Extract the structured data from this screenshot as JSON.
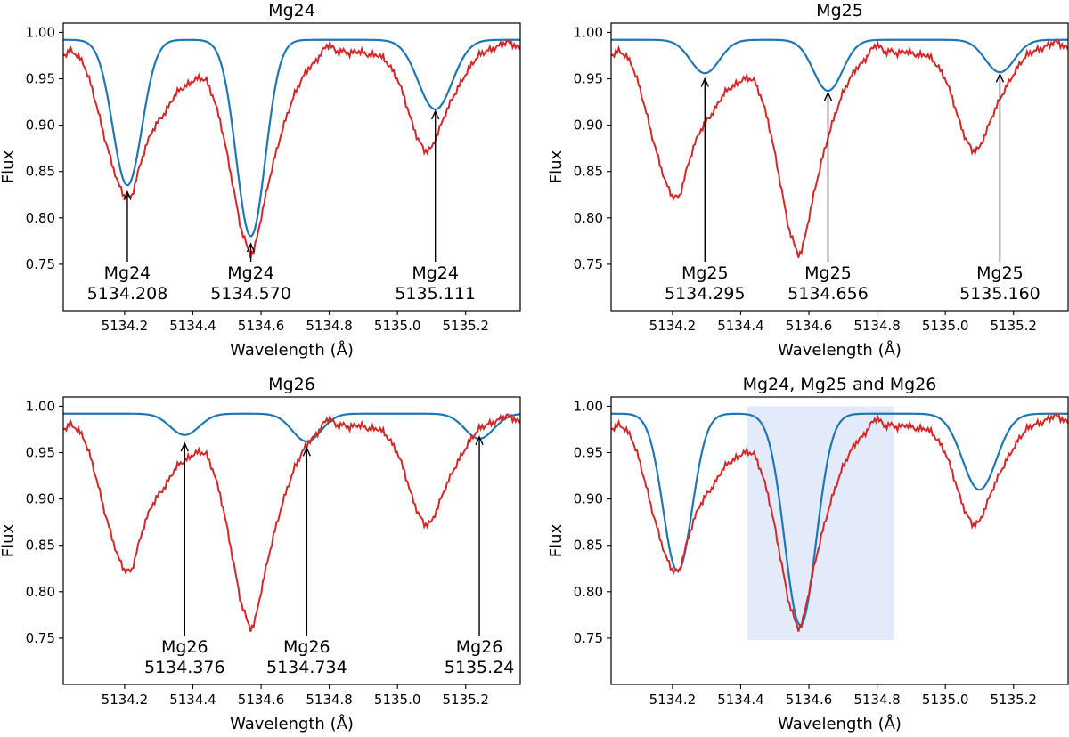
{
  "chart_data": [
    {
      "type": "line",
      "title": "Mg24",
      "xlabel": "Wavelength (Å)",
      "ylabel": "Flux",
      "xlim": [
        5134.02,
        5135.36
      ],
      "ylim": [
        0.7,
        1.01
      ],
      "xticks": [
        "5134.2",
        "5134.4",
        "5134.6",
        "5134.8",
        "5135.0",
        "5135.2"
      ],
      "yticks": [
        "0.75",
        "0.80",
        "0.85",
        "0.90",
        "0.95",
        "1.00"
      ],
      "model_dips": [
        {
          "center": 5134.208,
          "depth": 0.157,
          "width": 0.06
        },
        {
          "center": 5134.57,
          "depth": 0.212,
          "width": 0.06
        },
        {
          "center": 5135.111,
          "depth": 0.075,
          "width": 0.07
        }
      ],
      "model_continuum": 0.992,
      "annotations": [
        {
          "name": "Mg24",
          "wavelength": "5134.208",
          "x": 5134.208,
          "y_tip": 0.828
        },
        {
          "name": "Mg24",
          "wavelength": "5134.570",
          "x": 5134.57,
          "y_tip": 0.772
        },
        {
          "name": "Mg24",
          "wavelength": "5135.111",
          "x": 5135.111,
          "y_tip": 0.915
        }
      ]
    },
    {
      "type": "line",
      "title": "Mg25",
      "xlabel": "Wavelength (Å)",
      "ylabel": "Flux",
      "xlim": [
        5134.02,
        5135.36
      ],
      "ylim": [
        0.7,
        1.01
      ],
      "xticks": [
        "5134.2",
        "5134.4",
        "5134.6",
        "5134.8",
        "5135.0",
        "5135.2"
      ],
      "yticks": [
        "0.75",
        "0.80",
        "0.85",
        "0.90",
        "0.95",
        "1.00"
      ],
      "model_dips": [
        {
          "center": 5134.295,
          "depth": 0.036,
          "width": 0.06
        },
        {
          "center": 5134.656,
          "depth": 0.055,
          "width": 0.06
        },
        {
          "center": 5135.16,
          "depth": 0.035,
          "width": 0.06
        }
      ],
      "model_continuum": 0.992,
      "annotations": [
        {
          "name": "Mg25",
          "wavelength": "5134.295",
          "x": 5134.295,
          "y_tip": 0.95
        },
        {
          "name": "Mg25",
          "wavelength": "5134.656",
          "x": 5134.656,
          "y_tip": 0.935
        },
        {
          "name": "Mg25",
          "wavelength": "5135.160",
          "x": 5135.16,
          "y_tip": 0.955
        }
      ]
    },
    {
      "type": "line",
      "title": "Mg26",
      "xlabel": "Wavelength (Å)",
      "ylabel": "Flux",
      "xlim": [
        5134.02,
        5135.36
      ],
      "ylim": [
        0.7,
        1.01
      ],
      "xticks": [
        "5134.2",
        "5134.4",
        "5134.6",
        "5134.8",
        "5135.0",
        "5135.2"
      ],
      "yticks": [
        "0.75",
        "0.80",
        "0.85",
        "0.90",
        "0.95",
        "1.00"
      ],
      "model_dips": [
        {
          "center": 5134.376,
          "depth": 0.023,
          "width": 0.06
        },
        {
          "center": 5134.734,
          "depth": 0.03,
          "width": 0.06
        },
        {
          "center": 5135.24,
          "depth": 0.027,
          "width": 0.06
        }
      ],
      "model_continuum": 0.992,
      "annotations": [
        {
          "name": "Mg26",
          "wavelength": "5134.376",
          "x": 5134.376,
          "y_tip": 0.96
        },
        {
          "name": "Mg26",
          "wavelength": "5134.734",
          "x": 5134.734,
          "y_tip": 0.955
        },
        {
          "name": "Mg26",
          "wavelength": "5135.24",
          "x": 5135.24,
          "y_tip": 0.967
        }
      ]
    },
    {
      "type": "line",
      "title": "Mg24, Mg25 and Mg26",
      "xlabel": "Wavelength (Å)",
      "ylabel": "Flux",
      "xlim": [
        5134.02,
        5135.36
      ],
      "ylim": [
        0.7,
        1.01
      ],
      "xticks": [
        "5134.2",
        "5134.4",
        "5134.6",
        "5134.8",
        "5135.0",
        "5135.2"
      ],
      "yticks": [
        "0.75",
        "0.80",
        "0.85",
        "0.90",
        "0.95",
        "1.00"
      ],
      "model_dips": [
        {
          "center": 5134.215,
          "depth": 0.17,
          "width": 0.06
        },
        {
          "center": 5134.575,
          "depth": 0.228,
          "width": 0.065
        },
        {
          "center": 5135.1,
          "depth": 0.082,
          "width": 0.07
        }
      ],
      "model_continuum": 0.992,
      "highlight_region": {
        "x": [
          5134.42,
          5134.85
        ],
        "y": [
          0.748,
          1.0
        ],
        "color": "#e3eafa"
      },
      "annotations": []
    }
  ],
  "observed_spectrum": {
    "x": [
      5134.02,
      5134.04,
      5134.06,
      5134.08,
      5134.1,
      5134.12,
      5134.14,
      5134.16,
      5134.18,
      5134.2,
      5134.22,
      5134.24,
      5134.26,
      5134.28,
      5134.3,
      5134.32,
      5134.34,
      5134.36,
      5134.38,
      5134.4,
      5134.42,
      5134.44,
      5134.46,
      5134.48,
      5134.5,
      5134.52,
      5134.54,
      5134.56,
      5134.57,
      5134.58,
      5134.6,
      5134.62,
      5134.64,
      5134.66,
      5134.68,
      5134.7,
      5134.72,
      5134.74,
      5134.76,
      5134.78,
      5134.8,
      5134.82,
      5134.84,
      5134.86,
      5134.88,
      5134.9,
      5134.92,
      5134.94,
      5134.96,
      5134.98,
      5135.0,
      5135.02,
      5135.04,
      5135.06,
      5135.08,
      5135.1,
      5135.12,
      5135.14,
      5135.16,
      5135.18,
      5135.2,
      5135.22,
      5135.24,
      5135.26,
      5135.28,
      5135.3,
      5135.32,
      5135.34,
      5135.36
    ],
    "y": [
      0.975,
      0.98,
      0.976,
      0.966,
      0.945,
      0.918,
      0.888,
      0.862,
      0.838,
      0.823,
      0.822,
      0.85,
      0.875,
      0.893,
      0.905,
      0.914,
      0.928,
      0.938,
      0.942,
      0.948,
      0.951,
      0.948,
      0.93,
      0.905,
      0.87,
      0.83,
      0.79,
      0.768,
      0.76,
      0.765,
      0.8,
      0.835,
      0.865,
      0.892,
      0.915,
      0.935,
      0.95,
      0.962,
      0.968,
      0.98,
      0.988,
      0.979,
      0.98,
      0.977,
      0.98,
      0.978,
      0.975,
      0.976,
      0.972,
      0.962,
      0.95,
      0.93,
      0.905,
      0.885,
      0.872,
      0.875,
      0.893,
      0.912,
      0.928,
      0.942,
      0.955,
      0.967,
      0.976,
      0.98,
      0.982,
      0.986,
      0.99,
      0.987,
      0.982
    ]
  },
  "colors": {
    "observed": "#d62728",
    "model": "#1f77b4",
    "highlight": "#e3eafa"
  }
}
